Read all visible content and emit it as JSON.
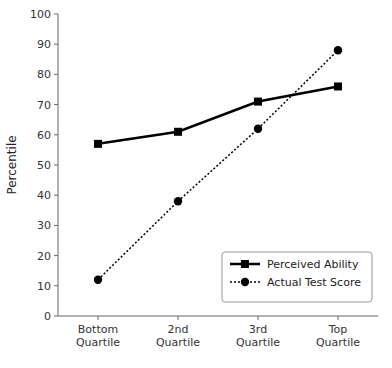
{
  "chart_data": {
    "type": "line",
    "categories": [
      "Bottom\nQuartile",
      "2nd\nQuartile",
      "3rd\nQuartile",
      "Top\nQuartile"
    ],
    "series": [
      {
        "name": "Perceived Ability",
        "color": "#000000",
        "values": [
          57,
          61,
          71,
          76
        ],
        "marker": "square",
        "line_style": "solid"
      },
      {
        "name": "Actual Test Score",
        "color": "#000000",
        "values": [
          12,
          38,
          62,
          88
        ],
        "marker": "circle",
        "line_style": "dotted"
      }
    ],
    "y_label": "Percentile",
    "ylim": [
      0,
      100
    ],
    "yticks": [
      0,
      10,
      20,
      30,
      40,
      50,
      60,
      70,
      80,
      90,
      100
    ],
    "grid": false,
    "legend": "lower right"
  }
}
